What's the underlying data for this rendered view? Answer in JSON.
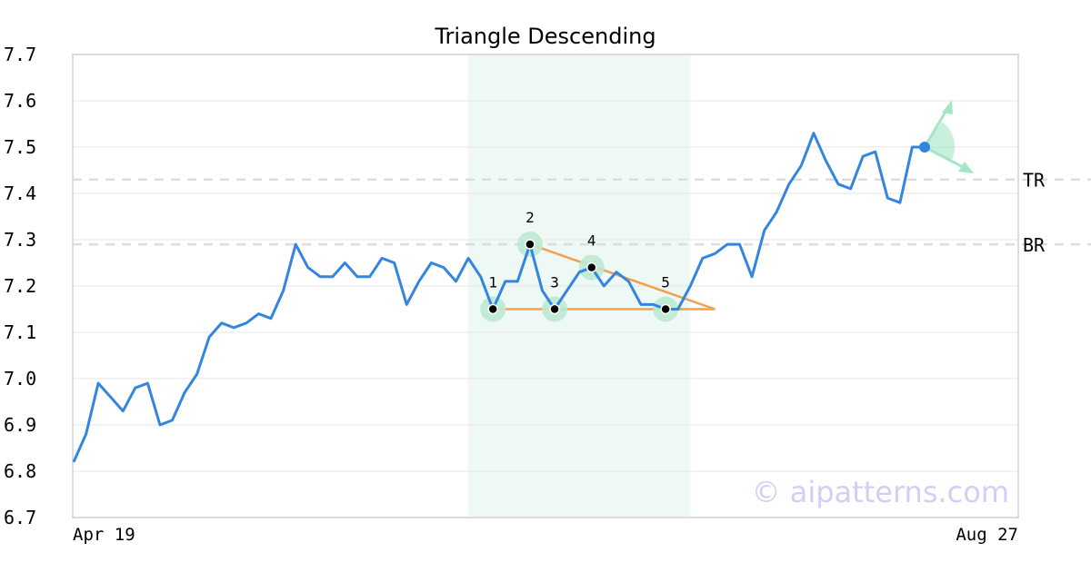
{
  "chart_data": {
    "type": "line",
    "title": "Triangle Descending",
    "watermark": "© aipatterns.com",
    "ylim": [
      6.7,
      7.7
    ],
    "y_ticks": [
      "6.7",
      "6.8",
      "6.9",
      "7.0",
      "7.1",
      "7.2",
      "7.3",
      "7.4",
      "7.5",
      "7.6",
      "7.7"
    ],
    "x_tick_labels": [
      "Apr 19",
      "Aug 27"
    ],
    "grid": true,
    "series": [
      {
        "values": [
          6.82,
          6.88,
          6.99,
          6.96,
          6.93,
          6.98,
          6.99,
          6.9,
          6.91,
          6.97,
          7.01,
          7.09,
          7.12,
          7.11,
          7.12,
          7.14,
          7.13,
          7.19,
          7.29,
          7.24,
          7.22,
          7.22,
          7.25,
          7.22,
          7.22,
          7.26,
          7.25,
          7.16,
          7.21,
          7.25,
          7.24,
          7.21,
          7.26,
          7.22,
          7.15,
          7.21,
          7.21,
          7.29,
          7.19,
          7.15,
          7.19,
          7.23,
          7.24,
          7.2,
          7.23,
          7.21,
          7.16,
          7.16,
          7.15,
          7.15,
          7.2,
          7.26,
          7.27,
          7.29,
          7.29,
          7.22,
          7.32,
          7.36,
          7.42,
          7.46,
          7.53,
          7.47,
          7.42,
          7.41,
          7.48,
          7.49,
          7.39,
          7.38,
          7.5,
          7.5
        ]
      }
    ],
    "pattern": {
      "shaded_range": [
        32,
        50
      ],
      "points": [
        {
          "label": "1",
          "index": 34,
          "value": 7.15
        },
        {
          "label": "2",
          "index": 37,
          "value": 7.29
        },
        {
          "label": "3",
          "index": 39,
          "value": 7.15
        },
        {
          "label": "4",
          "index": 42,
          "value": 7.24
        },
        {
          "label": "5",
          "index": 48,
          "value": 7.15
        }
      ],
      "upper_line": {
        "from_index": 37,
        "to_index": 52,
        "from_value": 7.29,
        "to_value": 7.15
      },
      "lower_line": {
        "from_index": 34,
        "to_index": 52,
        "value": 7.15
      }
    },
    "levels": [
      {
        "label": "TR",
        "value": 7.43
      },
      {
        "label": "BR",
        "value": 7.29
      }
    ],
    "colors": {
      "line": "#3385e0",
      "pattern": "#f5a04a",
      "shade": "#eef8f4",
      "point_halo": "#bde9d3",
      "arrow": "#a5e6c7",
      "grid": "#e6e6e6",
      "level": "#dddddd"
    }
  }
}
